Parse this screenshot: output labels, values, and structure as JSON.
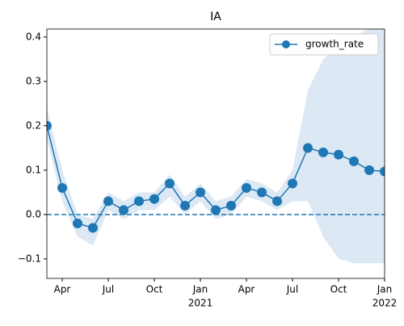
{
  "chart_data": {
    "type": "line",
    "title": "IA",
    "x": [
      "2020-03",
      "2020-04",
      "2020-05",
      "2020-06",
      "2020-07",
      "2020-08",
      "2020-09",
      "2020-10",
      "2020-11",
      "2020-12",
      "2021-01",
      "2021-02",
      "2021-03",
      "2021-04",
      "2021-05",
      "2021-06",
      "2021-07",
      "2021-08",
      "2021-09",
      "2021-10",
      "2021-11",
      "2021-12",
      "2022-01"
    ],
    "series": [
      {
        "name": "growth_rate",
        "color": "#1f77b4",
        "values": [
          0.2,
          0.06,
          -0.02,
          -0.03,
          0.03,
          0.01,
          0.03,
          0.035,
          0.07,
          0.02,
          0.05,
          0.01,
          0.02,
          0.06,
          0.05,
          0.03,
          0.07,
          0.15,
          0.14,
          0.135,
          0.12,
          0.1,
          0.097
        ],
        "lower": [
          0.17,
          0.03,
          -0.05,
          -0.07,
          0.01,
          -0.01,
          0.01,
          0.01,
          0.04,
          0.0,
          0.03,
          -0.01,
          0.0,
          0.04,
          0.03,
          0.01,
          0.03,
          0.03,
          -0.05,
          -0.1,
          -0.11,
          -0.11,
          -0.11
        ],
        "upper": [
          0.24,
          0.1,
          0.0,
          -0.01,
          0.05,
          0.03,
          0.05,
          0.05,
          0.09,
          0.04,
          0.07,
          0.03,
          0.04,
          0.08,
          0.07,
          0.05,
          0.1,
          0.28,
          0.35,
          0.38,
          0.4,
          0.42,
          0.42
        ]
      }
    ],
    "band_color": "#dce8f4",
    "hline": 0,
    "xlim": [
      "2020-03",
      "2022-01"
    ],
    "xticks": [
      {
        "value": "2020-04",
        "label": "Apr"
      },
      {
        "value": "2020-07",
        "label": "Jul"
      },
      {
        "value": "2020-10",
        "label": "Oct"
      },
      {
        "value": "2021-01",
        "label": "Jan",
        "sublabel": "2021"
      },
      {
        "value": "2021-04",
        "label": "Apr"
      },
      {
        "value": "2021-07",
        "label": "Jul"
      },
      {
        "value": "2021-10",
        "label": "Oct"
      },
      {
        "value": "2022-01",
        "label": "Jan",
        "sublabel": "2022"
      }
    ],
    "ylim": [
      -0.144,
      0.418
    ],
    "yticks": [
      {
        "value": -0.1,
        "label": "−0.1"
      },
      {
        "value": 0,
        "label": "0.0"
      },
      0.1,
      0.2,
      0.3,
      0.4
    ],
    "legend": "upper right"
  }
}
